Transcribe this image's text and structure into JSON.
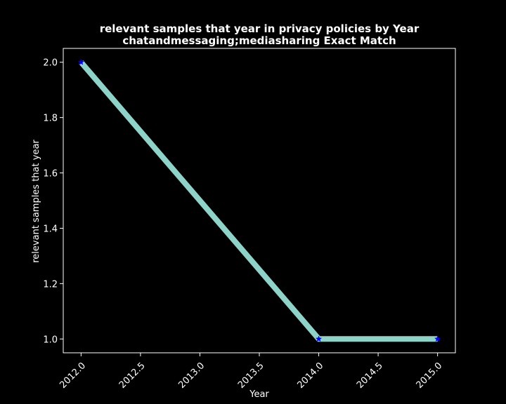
{
  "chart_data": {
    "type": "line",
    "title_line1": "relevant samples that year in privacy policies by Year",
    "title_line2": "chatandmessaging;mediasharing Exact Match",
    "xlabel": "Year",
    "ylabel": "relevant samples that year",
    "x": [
      2012.0,
      2014.0,
      2015.0
    ],
    "series": [
      {
        "values": [
          2.0,
          1.0,
          1.0
        ]
      }
    ],
    "xlim": [
      2011.85,
      2015.15
    ],
    "ylim": [
      0.95,
      2.05
    ],
    "xticks": [
      "2012.0",
      "2012.5",
      "2013.0",
      "2013.5",
      "2014.0",
      "2014.5",
      "2015.0"
    ],
    "xtick_values": [
      2012.0,
      2012.5,
      2013.0,
      2013.5,
      2014.0,
      2014.5,
      2015.0
    ],
    "yticks": [
      "1.0",
      "1.2",
      "1.4",
      "1.6",
      "1.8",
      "2.0"
    ],
    "ytick_values": [
      1.0,
      1.2,
      1.4,
      1.6,
      1.8,
      2.0
    ],
    "grid": false,
    "background_color": "#000000",
    "axis_color": "#ffffff",
    "line_color": "#8dd3c7",
    "marker_color": "#0000ff",
    "marker": "star"
  }
}
